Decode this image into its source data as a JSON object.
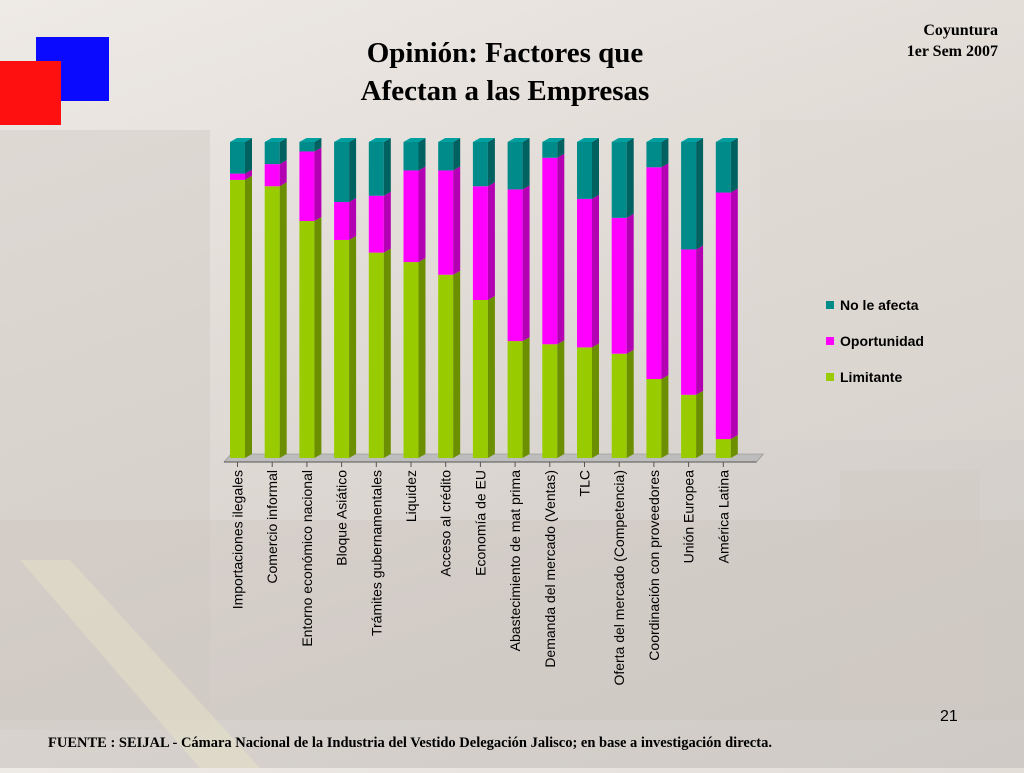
{
  "slide": {
    "title_line1": "Opinión: Factores que",
    "title_line2": "Afectan a las  Empresas",
    "corner_line1": "Coyuntura",
    "corner_line2": "1er Sem 2007",
    "page_number": "21",
    "footer": "FUENTE :  SEIJAL - Cámara Nacional de la Industria del Vestido Delegación Jalisco;  en base a investigación directa."
  },
  "colors": {
    "limitante": "#99cc00",
    "oportunidad": "#ff00ff",
    "no_le_afecta": "#008b8b",
    "accent_blue": "#0a0aff",
    "accent_red": "#ff1010"
  },
  "chart_data": {
    "type": "bar",
    "stacked": true,
    "percent_stacked": true,
    "three_d": true,
    "title": "",
    "xlabel": "",
    "ylabel": "",
    "ylim": [
      0,
      100
    ],
    "grid": false,
    "legend_position": "right",
    "categories": [
      "Importaciones ilegales",
      "Comercio informal",
      "Entorno económico nacional",
      "Bloque Asiático",
      "Trámites gubernamentales",
      "Liquidez",
      "Acceso al crédito",
      "Economía de EU",
      "Abastecimiento de mat prima",
      "Demanda del mercado (Ventas)",
      "TLC",
      "Oferta del mercado (Competencia)",
      "Coordinación con proveedores",
      "Unión Europea",
      "América Latina"
    ],
    "series": [
      {
        "name": "Limitante",
        "key": "limitante",
        "values": [
          88,
          86,
          75,
          69,
          65,
          62,
          58,
          50,
          37,
          36,
          35,
          33,
          25,
          20,
          6
        ]
      },
      {
        "name": "Oportunidad",
        "key": "oportunidad",
        "values": [
          2,
          7,
          22,
          12,
          18,
          29,
          33,
          36,
          48,
          59,
          47,
          43,
          67,
          46,
          78
        ]
      },
      {
        "name": "No le afecta",
        "key": "no_le_afecta",
        "values": [
          10,
          7,
          3,
          19,
          17,
          9,
          9,
          14,
          15,
          5,
          18,
          24,
          8,
          34,
          16
        ]
      }
    ],
    "legend_order": [
      "No le afecta",
      "Oportunidad",
      "Limitante"
    ]
  }
}
